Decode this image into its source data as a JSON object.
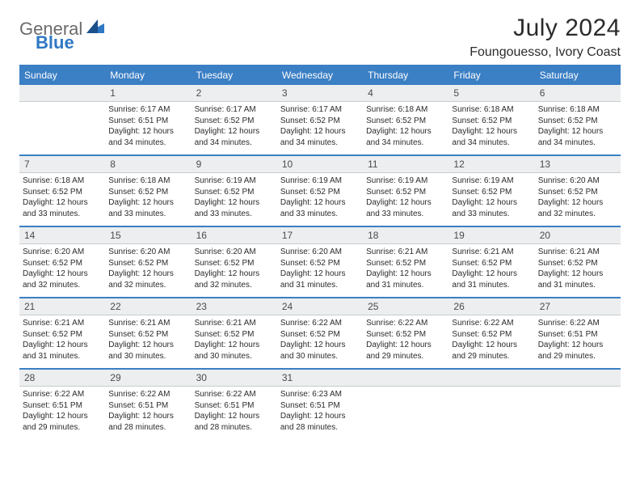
{
  "brand": {
    "text1": "General",
    "text2": "Blue"
  },
  "title": "July 2024",
  "subtitle": "Foungouesso, Ivory Coast",
  "colors": {
    "header_bg": "#3b7fc4",
    "header_text": "#ffffff",
    "date_row_bg": "#eceeef",
    "border_accent": "#3b7fc4",
    "body_text": "#2b2b2b"
  },
  "day_names": [
    "Sunday",
    "Monday",
    "Tuesday",
    "Wednesday",
    "Thursday",
    "Friday",
    "Saturday"
  ],
  "weeks": [
    {
      "dates": [
        "",
        "1",
        "2",
        "3",
        "4",
        "5",
        "6"
      ],
      "cells": [
        null,
        {
          "sunrise": "6:17 AM",
          "sunset": "6:51 PM",
          "daylight": "12 hours and 34 minutes."
        },
        {
          "sunrise": "6:17 AM",
          "sunset": "6:52 PM",
          "daylight": "12 hours and 34 minutes."
        },
        {
          "sunrise": "6:17 AM",
          "sunset": "6:52 PM",
          "daylight": "12 hours and 34 minutes."
        },
        {
          "sunrise": "6:18 AM",
          "sunset": "6:52 PM",
          "daylight": "12 hours and 34 minutes."
        },
        {
          "sunrise": "6:18 AM",
          "sunset": "6:52 PM",
          "daylight": "12 hours and 34 minutes."
        },
        {
          "sunrise": "6:18 AM",
          "sunset": "6:52 PM",
          "daylight": "12 hours and 34 minutes."
        }
      ]
    },
    {
      "dates": [
        "7",
        "8",
        "9",
        "10",
        "11",
        "12",
        "13"
      ],
      "cells": [
        {
          "sunrise": "6:18 AM",
          "sunset": "6:52 PM",
          "daylight": "12 hours and 33 minutes."
        },
        {
          "sunrise": "6:18 AM",
          "sunset": "6:52 PM",
          "daylight": "12 hours and 33 minutes."
        },
        {
          "sunrise": "6:19 AM",
          "sunset": "6:52 PM",
          "daylight": "12 hours and 33 minutes."
        },
        {
          "sunrise": "6:19 AM",
          "sunset": "6:52 PM",
          "daylight": "12 hours and 33 minutes."
        },
        {
          "sunrise": "6:19 AM",
          "sunset": "6:52 PM",
          "daylight": "12 hours and 33 minutes."
        },
        {
          "sunrise": "6:19 AM",
          "sunset": "6:52 PM",
          "daylight": "12 hours and 33 minutes."
        },
        {
          "sunrise": "6:20 AM",
          "sunset": "6:52 PM",
          "daylight": "12 hours and 32 minutes."
        }
      ]
    },
    {
      "dates": [
        "14",
        "15",
        "16",
        "17",
        "18",
        "19",
        "20"
      ],
      "cells": [
        {
          "sunrise": "6:20 AM",
          "sunset": "6:52 PM",
          "daylight": "12 hours and 32 minutes."
        },
        {
          "sunrise": "6:20 AM",
          "sunset": "6:52 PM",
          "daylight": "12 hours and 32 minutes."
        },
        {
          "sunrise": "6:20 AM",
          "sunset": "6:52 PM",
          "daylight": "12 hours and 32 minutes."
        },
        {
          "sunrise": "6:20 AM",
          "sunset": "6:52 PM",
          "daylight": "12 hours and 31 minutes."
        },
        {
          "sunrise": "6:21 AM",
          "sunset": "6:52 PM",
          "daylight": "12 hours and 31 minutes."
        },
        {
          "sunrise": "6:21 AM",
          "sunset": "6:52 PM",
          "daylight": "12 hours and 31 minutes."
        },
        {
          "sunrise": "6:21 AM",
          "sunset": "6:52 PM",
          "daylight": "12 hours and 31 minutes."
        }
      ]
    },
    {
      "dates": [
        "21",
        "22",
        "23",
        "24",
        "25",
        "26",
        "27"
      ],
      "cells": [
        {
          "sunrise": "6:21 AM",
          "sunset": "6:52 PM",
          "daylight": "12 hours and 31 minutes."
        },
        {
          "sunrise": "6:21 AM",
          "sunset": "6:52 PM",
          "daylight": "12 hours and 30 minutes."
        },
        {
          "sunrise": "6:21 AM",
          "sunset": "6:52 PM",
          "daylight": "12 hours and 30 minutes."
        },
        {
          "sunrise": "6:22 AM",
          "sunset": "6:52 PM",
          "daylight": "12 hours and 30 minutes."
        },
        {
          "sunrise": "6:22 AM",
          "sunset": "6:52 PM",
          "daylight": "12 hours and 29 minutes."
        },
        {
          "sunrise": "6:22 AM",
          "sunset": "6:52 PM",
          "daylight": "12 hours and 29 minutes."
        },
        {
          "sunrise": "6:22 AM",
          "sunset": "6:51 PM",
          "daylight": "12 hours and 29 minutes."
        }
      ]
    },
    {
      "dates": [
        "28",
        "29",
        "30",
        "31",
        "",
        "",
        ""
      ],
      "cells": [
        {
          "sunrise": "6:22 AM",
          "sunset": "6:51 PM",
          "daylight": "12 hours and 29 minutes."
        },
        {
          "sunrise": "6:22 AM",
          "sunset": "6:51 PM",
          "daylight": "12 hours and 28 minutes."
        },
        {
          "sunrise": "6:22 AM",
          "sunset": "6:51 PM",
          "daylight": "12 hours and 28 minutes."
        },
        {
          "sunrise": "6:23 AM",
          "sunset": "6:51 PM",
          "daylight": "12 hours and 28 minutes."
        },
        null,
        null,
        null
      ]
    }
  ],
  "labels": {
    "sunrise": "Sunrise:",
    "sunset": "Sunset:",
    "daylight": "Daylight:"
  }
}
